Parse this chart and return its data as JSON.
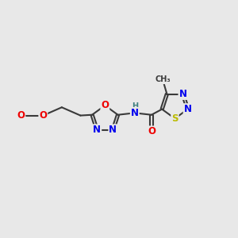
{
  "bg_color": "#e8e8e8",
  "bond_color": "#3a3a3a",
  "bond_width": 1.5,
  "atom_colors": {
    "N": "#0000ee",
    "O": "#ee0000",
    "S": "#bbbb00",
    "C": "#3a3a3a",
    "H": "#408080"
  },
  "font_size": 8.5,
  "figsize": [
    3.0,
    3.0
  ],
  "dpi": 100
}
